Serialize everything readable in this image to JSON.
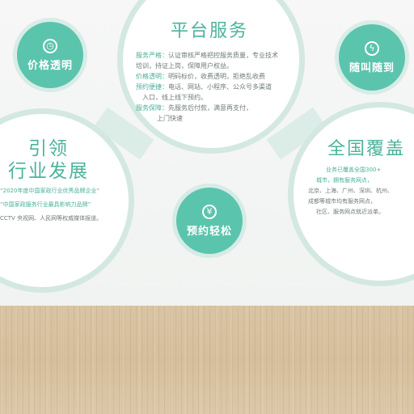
{
  "badges": {
    "price": {
      "label": "价格透明",
      "icon": "clock-icon"
    },
    "instant": {
      "label": "随叫随到",
      "icon": "lightning-icon"
    },
    "booking": {
      "label": "预约轻松",
      "icon": "yen-icon"
    }
  },
  "platform": {
    "title": "平台服务",
    "lines": [
      {
        "key": "服务严格：",
        "text": "认证审核严格把控服务质量，专业技术"
      },
      {
        "key": "",
        "text": "培训，持证上岗，保障用户权益。"
      },
      {
        "key": "价格透明：",
        "text": "明码标价，收费透明，拒绝乱收费"
      },
      {
        "key": "预约便捷：",
        "text": "电话、网站、小程序、公众号多渠道"
      },
      {
        "key": "",
        "text": "入口，线上线下预约。"
      },
      {
        "key": "服务保障：",
        "text": "先服务后付款，满意再支付，"
      },
      {
        "key": "",
        "text": "上门快速"
      }
    ]
  },
  "lead": {
    "title_line1": "引领",
    "title_line2": "行业发展",
    "lines": [
      "“2020年度中国家政行业优秀品牌企业”",
      "“中国家政服务行业最具影响力品牌”",
      "CCTV 央视网、人民网等权威媒体报道。"
    ]
  },
  "national": {
    "title": "全国覆盖",
    "lines": [
      "业务已覆盖全国300+",
      "城市，拥有服务网点，",
      "北京、上海、广州、深圳、杭州、",
      "成都等城市均有服务网点，",
      "社区、服务网点就近派单。"
    ]
  },
  "colors": {
    "accent": "#5bc4ad",
    "ring": "#d3e8e1",
    "title": "#4cb39c",
    "floor": "#d7c1a0"
  }
}
